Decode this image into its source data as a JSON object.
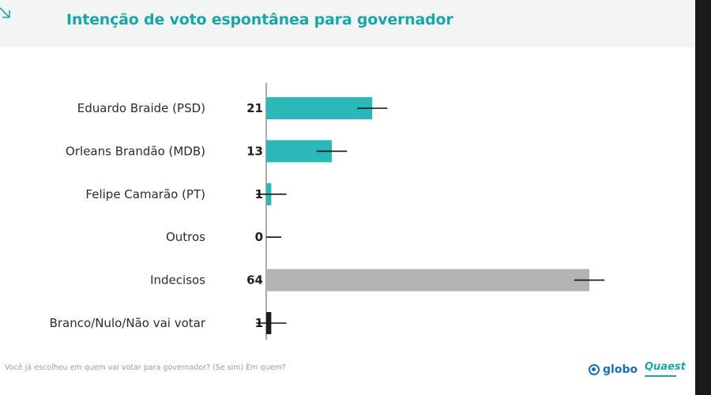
{
  "title": "Intenção de voto espontânea para governador",
  "question": "Você já escolheu em quem vai votar para governador? (Se sim) Em quem?",
  "logos": {
    "globo": "globo",
    "quaest": "Quaest"
  },
  "icons": {
    "corner": "diagonal-arrow-icon"
  },
  "colors": {
    "accent": "#2bb8b8",
    "undecided": "#b3b3b3",
    "blank": "#1e1e1e",
    "title": "#1aa6a6"
  },
  "chart_data": {
    "type": "bar",
    "orientation": "horizontal",
    "title": "Intenção de voto espontânea para governador",
    "categories": [
      "Eduardo Braide (PSD)",
      "Orleans Brandão (MDB)",
      "Felipe Camarão (PT)",
      "Outros",
      "Indecisos",
      "Branco/Nulo/Não vai votar"
    ],
    "values": [
      21,
      13,
      1,
      0,
      64,
      1
    ],
    "value_labels": [
      "21",
      "13",
      "1",
      "0",
      "64",
      "1"
    ],
    "error_bars": [
      3,
      3,
      3,
      3,
      3,
      3
    ],
    "bar_colors": [
      "#2bb8b8",
      "#2bb8b8",
      "#2bb8b8",
      "#2bb8b8",
      "#b3b3b3",
      "#1e1e1e"
    ],
    "xlim": [
      0,
      64
    ],
    "grid": false,
    "legend": "none"
  }
}
